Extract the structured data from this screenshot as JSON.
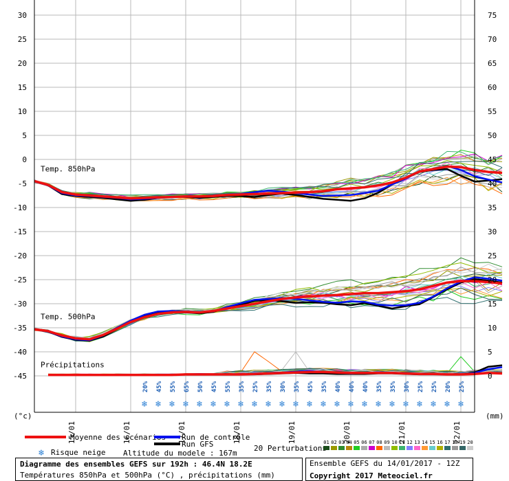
{
  "chart_data": {
    "type": "line",
    "title": "Diagramme des ensembles GEFS sur 192h : 46.4N 18.2E",
    "subtitle": "Températures 850hPa et 500hPa (°C) , précipitations (mm)",
    "left_axis": {
      "unit": "(°c)",
      "ticks": [
        30,
        25,
        20,
        15,
        10,
        5,
        0,
        -5,
        -10,
        -15,
        -20,
        -25,
        -30,
        -35,
        -40,
        -45
      ],
      "range": [
        -50,
        33
      ]
    },
    "right_axis": {
      "unit": "(mm)",
      "ticks": [
        75,
        70,
        65,
        60,
        55,
        50,
        45,
        40,
        35,
        30,
        25,
        20,
        15,
        10,
        5,
        0
      ]
    },
    "x_range": [
      0,
      32
    ],
    "x_ticks": [
      {
        "x": 3,
        "label": "15/01"
      },
      {
        "x": 7,
        "label": "16/01"
      },
      {
        "x": 11,
        "label": "17/01"
      },
      {
        "x": 15,
        "label": "18/01"
      },
      {
        "x": 19,
        "label": "19/01"
      },
      {
        "x": 23,
        "label": "20/01"
      },
      {
        "x": 27,
        "label": "21/01"
      },
      {
        "x": 31,
        "label": "22/01"
      }
    ],
    "panels": [
      {
        "name": "Temp. 850hPa",
        "label_y": -2.5
      },
      {
        "name": "Temp. 500hPa",
        "label_y": -33.2
      },
      {
        "name": "Précipitations",
        "label_y": -43.2
      }
    ],
    "t850": {
      "mean": [
        -4.5,
        -5.3,
        -6.8,
        -7.3,
        -7.5,
        -7.7,
        -7.9,
        -8.1,
        -8.0,
        -7.9,
        -7.8,
        -7.7,
        -7.7,
        -7.6,
        -7.4,
        -7.3,
        -7.2,
        -7.1,
        -7.0,
        -6.9,
        -6.8,
        -6.6,
        -6.2,
        -6.0,
        -5.8,
        -5.4,
        -4.8,
        -3.8,
        -2.5,
        -2.0,
        -1.5,
        -1.6,
        -2.2,
        -2.6,
        -2.8
      ],
      "control": [
        -4.6,
        -5.4,
        -7.0,
        -7.5,
        -7.6,
        -7.8,
        -8.0,
        -8.3,
        -8.2,
        -8.0,
        -7.8,
        -7.6,
        -7.7,
        -7.6,
        -7.3,
        -7.2,
        -6.8,
        -6.5,
        -6.7,
        -7.0,
        -7.3,
        -7.6,
        -7.5,
        -7.4,
        -7.0,
        -6.5,
        -5.2,
        -4.0,
        -2.5,
        -2.0,
        -1.4,
        -2.2,
        -3.5,
        -4.2,
        -4.8
      ],
      "gfs": [
        -4.5,
        -5.4,
        -7.2,
        -7.6,
        -7.8,
        -8.0,
        -8.3,
        -8.6,
        -8.4,
        -8.0,
        -7.8,
        -7.8,
        -8.0,
        -7.8,
        -7.6,
        -7.6,
        -7.8,
        -7.4,
        -7.1,
        -7.4,
        -7.8,
        -8.2,
        -8.4,
        -8.6,
        -8.1,
        -6.9,
        -5.2,
        -3.9,
        -2.6,
        -2.2,
        -2.0,
        -3.4,
        -4.6,
        -4.4,
        -4.1
      ],
      "spread_start": 15,
      "spread_amp": 3.2
    },
    "t500": {
      "mean": [
        -35.3,
        -35.7,
        -36.6,
        -37.2,
        -37.4,
        -36.5,
        -35.2,
        -33.8,
        -32.8,
        -32.1,
        -31.8,
        -31.7,
        -31.8,
        -31.5,
        -31.0,
        -30.5,
        -30.0,
        -29.5,
        -29.0,
        -28.7,
        -28.5,
        -28.3,
        -28.2,
        -28.0,
        -27.8,
        -27.8,
        -27.6,
        -27.4,
        -27.0,
        -26.3,
        -25.6,
        -25.3,
        -25.3,
        -25.5,
        -25.8
      ],
      "control": [
        -35.3,
        -35.8,
        -36.8,
        -37.4,
        -37.6,
        -36.6,
        -35.0,
        -33.5,
        -32.3,
        -31.6,
        -31.5,
        -31.6,
        -31.7,
        -31.6,
        -30.7,
        -29.9,
        -29.2,
        -29.0,
        -28.8,
        -29.0,
        -29.3,
        -29.6,
        -29.8,
        -29.5,
        -29.6,
        -30.2,
        -30.4,
        -30.3,
        -29.8,
        -28.5,
        -26.8,
        -25.4,
        -24.5,
        -24.8,
        -25.2
      ],
      "gfs": [
        -35.3,
        -35.8,
        -36.9,
        -37.5,
        -37.7,
        -36.8,
        -35.3,
        -33.6,
        -32.5,
        -31.9,
        -31.7,
        -31.8,
        -32.0,
        -31.7,
        -30.8,
        -30.2,
        -29.4,
        -29.2,
        -29.5,
        -29.8,
        -29.7,
        -29.8,
        -30.1,
        -30.3,
        -29.9,
        -30.4,
        -31.0,
        -30.5,
        -30.1,
        -28.6,
        -27.0,
        -25.6,
        -24.9,
        -25.2,
        -25.6
      ],
      "spread_start": 13,
      "spread_amp": 4.5
    },
    "precip": {
      "mean": [
        0.2,
        0.2,
        0.2,
        0.2,
        0.2,
        0.2,
        0.2,
        0.2,
        0.2,
        0.2,
        0.3,
        0.3,
        0.3,
        0.3,
        0.3,
        0.4,
        0.5,
        0.6,
        0.7,
        0.8,
        0.8,
        0.7,
        0.6,
        0.6,
        0.6,
        0.6,
        0.5,
        0.4,
        0.4,
        0.3,
        0.3,
        0.4,
        0.6,
        0.5
      ],
      "control": [
        0.2,
        0.2,
        0.2,
        0.2,
        0.2,
        0.2,
        0.2,
        0.2,
        0.2,
        0.2,
        0.3,
        0.4,
        0.3,
        0.3,
        0.4,
        0.5,
        0.6,
        0.7,
        0.9,
        1.0,
        0.8,
        0.7,
        0.5,
        0.6,
        0.6,
        0.7,
        0.5,
        0.4,
        0.4,
        0.3,
        0.3,
        0.6,
        1.4,
        1.8
      ],
      "gfs": [
        0.2,
        0.2,
        0.2,
        0.2,
        0.2,
        0.2,
        0.2,
        0.2,
        0.2,
        0.2,
        0.3,
        0.3,
        0.3,
        0.3,
        0.3,
        0.3,
        0.4,
        0.5,
        0.6,
        0.5,
        0.5,
        0.4,
        0.4,
        0.4,
        0.5,
        0.5,
        0.4,
        0.3,
        0.3,
        0.3,
        0.3,
        0.7,
        1.9,
        2.2
      ]
    },
    "snow_risk": [
      {
        "x": 9,
        "pct": "20%"
      },
      {
        "x": 10,
        "pct": "45%"
      },
      {
        "x": 11,
        "pct": "55%"
      },
      {
        "x": 12,
        "pct": "65%"
      },
      {
        "x": 13,
        "pct": "50%"
      },
      {
        "x": 14,
        "pct": "45%"
      },
      {
        "x": 15,
        "pct": "55%"
      },
      {
        "x": 16,
        "pct": "35%"
      },
      {
        "x": 17,
        "pct": "25%"
      },
      {
        "x": 18,
        "pct": "35%"
      },
      {
        "x": 19,
        "pct": "30%"
      },
      {
        "x": 20,
        "pct": "35%"
      },
      {
        "x": 21,
        "pct": "45%"
      },
      {
        "x": 22,
        "pct": "35%"
      },
      {
        "x": 23,
        "pct": "40%"
      },
      {
        "x": 24,
        "pct": "40%"
      },
      {
        "x": 25,
        "pct": "40%"
      },
      {
        "x": 26,
        "pct": "35%"
      },
      {
        "x": 27,
        "pct": "35%"
      },
      {
        "x": 28,
        "pct": "30%"
      },
      {
        "x": 29,
        "pct": "25%"
      },
      {
        "x": 30,
        "pct": "25%"
      },
      {
        "x": 31,
        "pct": "20%"
      },
      {
        "x": 32,
        "pct": "25%"
      }
    ],
    "series_colors": {
      "mean": "#ee1111",
      "control": "#0011ee",
      "gfs": "#000000"
    },
    "perturbation_colors": [
      "#1a4d1a",
      "#999900",
      "#2e8b2e",
      "#b8860b",
      "#22cc22",
      "#aaaaaa",
      "#cc00cc",
      "#ff6600",
      "#bbbbbb",
      "#8fbc00",
      "#3cb371",
      "#8080ff",
      "#ff66cc",
      "#ff9933",
      "#66cccc",
      "#b0b000",
      "#2f6f6f",
      "#999999",
      "#336666",
      "#cccccc"
    ]
  },
  "legend": {
    "mean_label": "Moyenne des scénarios",
    "control_label": "Run de contrôle",
    "gfs_label": "Run GFS",
    "perturbations_label": "20 Perturbations",
    "perturbation_ids": [
      "01",
      "02",
      "03",
      "04",
      "05",
      "06",
      "07",
      "08",
      "09",
      "10",
      "11",
      "12",
      "13",
      "14",
      "15",
      "16",
      "17",
      "18",
      "19",
      "20"
    ],
    "snow_label": "Risque neige",
    "altitude_label": "Altitude du modele : 167m"
  },
  "footer": {
    "title": "Diagramme des ensembles GEFS sur 192h : 46.4N 18.2E",
    "subtitle": "Températures 850hPa et 500hPa (°C) , précipitations (mm)",
    "run_info": "Ensemble GEFS du 14/01/2017 - 12Z",
    "copyright": "Copyright 2017 Meteociel.fr"
  }
}
